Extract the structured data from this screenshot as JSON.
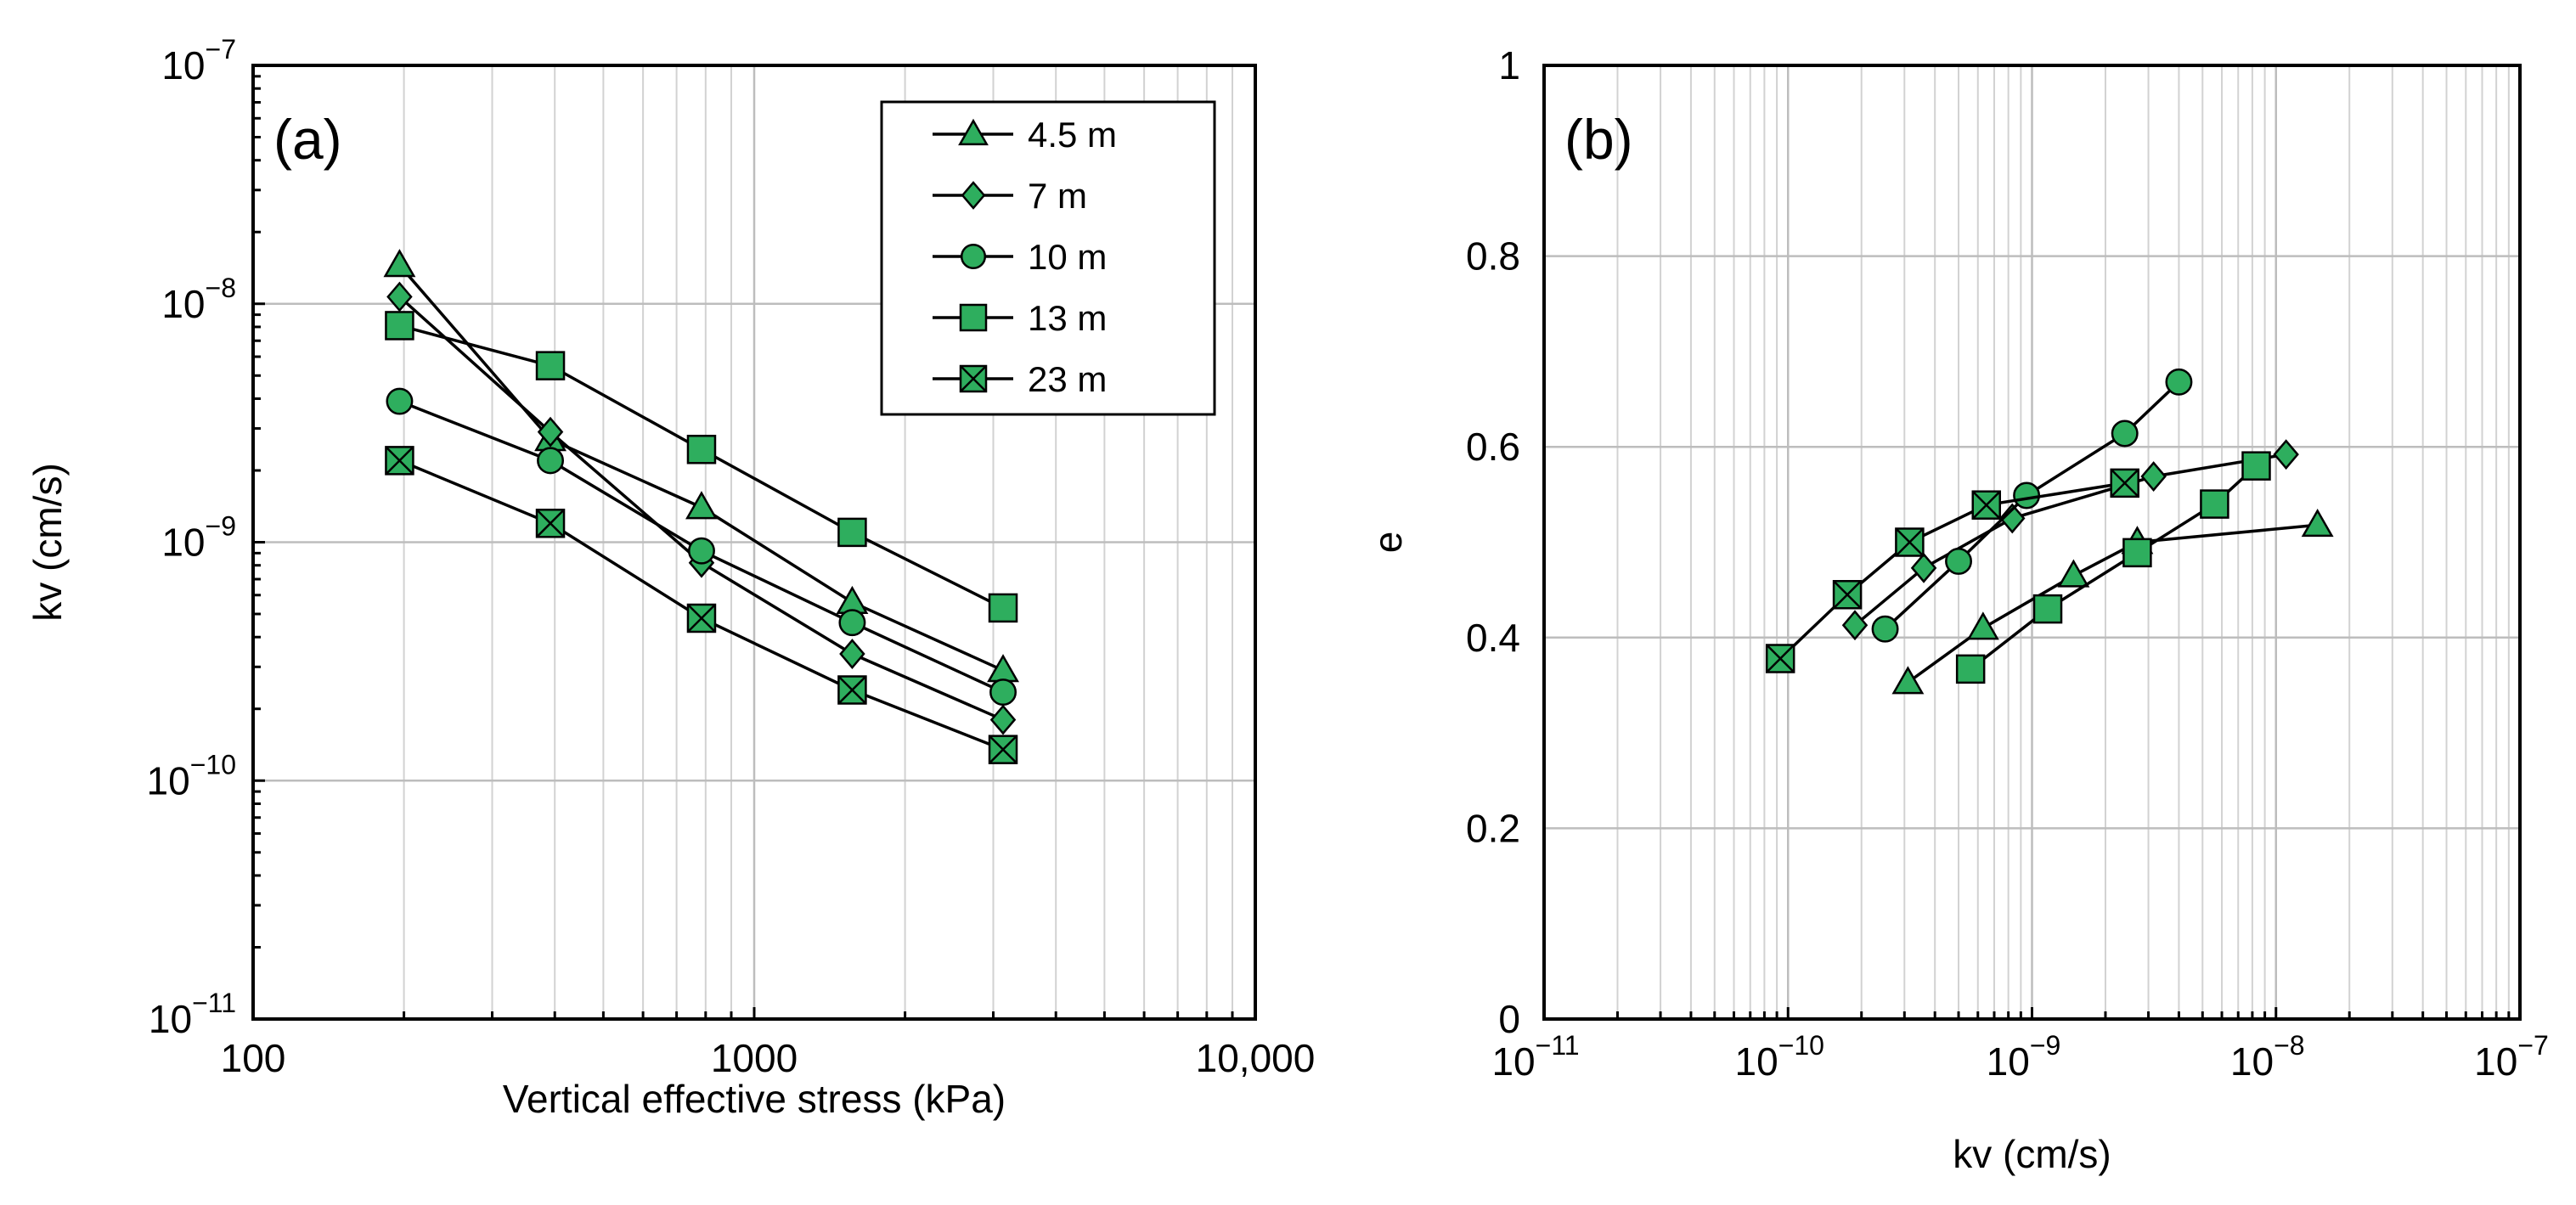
{
  "marker_fill": "#2eae5e",
  "marker_stroke": "#000000",
  "chart_data": [
    {
      "type": "line",
      "panel_label": "(a)",
      "xlabel": "Vertical effective stress (kPa)",
      "ylabel": "kv (cm/s)",
      "xscale": "log",
      "yscale": "log",
      "xlim": [
        100,
        10000
      ],
      "ylim": [
        1e-11,
        1e-07
      ],
      "grid": true,
      "legend_position": "top-right",
      "xticks": [
        {
          "value": 100,
          "label": "100"
        },
        {
          "value": 1000,
          "label": "1000"
        },
        {
          "value": 10000,
          "label": "10,000"
        }
      ],
      "yticks": [
        {
          "value": 1e-11,
          "base": "10",
          "exp": "−11"
        },
        {
          "value": 1e-10,
          "base": "10",
          "exp": "−10"
        },
        {
          "value": 1e-09,
          "base": "10",
          "exp": "−9"
        },
        {
          "value": 1e-08,
          "base": "10",
          "exp": "−8"
        },
        {
          "value": 1e-07,
          "base": "10",
          "exp": "−7"
        }
      ],
      "series": [
        {
          "name": "4.5 m",
          "marker": "triangle",
          "points": [
            [
              196,
              1.45e-08
            ],
            [
              392,
              2.7e-09
            ],
            [
              785,
              1.4e-09
            ],
            [
              1569,
              5.6e-10
            ],
            [
              3138,
              2.9e-10
            ]
          ]
        },
        {
          "name": "7 m",
          "marker": "diamond",
          "points": [
            [
              196,
              1.07e-08
            ],
            [
              392,
              2.9e-09
            ],
            [
              785,
              8.2e-10
            ],
            [
              1569,
              3.4e-10
            ],
            [
              3138,
              1.8e-10
            ]
          ]
        },
        {
          "name": "10 m",
          "marker": "circle",
          "points": [
            [
              196,
              3.9e-09
            ],
            [
              392,
              2.2e-09
            ],
            [
              785,
              9.2e-10
            ],
            [
              1569,
              4.6e-10
            ],
            [
              3138,
              2.35e-10
            ]
          ]
        },
        {
          "name": "13 m",
          "marker": "square",
          "points": [
            [
              196,
              8.1e-09
            ],
            [
              392,
              5.5e-09
            ],
            [
              785,
              2.45e-09
            ],
            [
              1569,
              1.1e-09
            ],
            [
              3138,
              5.3e-10
            ]
          ]
        },
        {
          "name": "23 m",
          "marker": "xsquare",
          "points": [
            [
              196,
              2.2e-09
            ],
            [
              392,
              1.2e-09
            ],
            [
              785,
              4.8e-10
            ],
            [
              1569,
              2.4e-10
            ],
            [
              3138,
              1.35e-10
            ]
          ]
        }
      ]
    },
    {
      "type": "line",
      "panel_label": "(b)",
      "xlabel": "kv (cm/s)",
      "ylabel": "e",
      "xscale": "log",
      "yscale": "linear",
      "xlim": [
        1e-11,
        1e-07
      ],
      "ylim": [
        0,
        1
      ],
      "grid": true,
      "xticks": [
        {
          "value": 1e-11,
          "base": "10",
          "exp": "−11"
        },
        {
          "value": 1e-10,
          "base": "10",
          "exp": "−10"
        },
        {
          "value": 1e-09,
          "base": "10",
          "exp": "−9"
        },
        {
          "value": 1e-08,
          "base": "10",
          "exp": "−8"
        },
        {
          "value": 1e-07,
          "base": "10",
          "exp": "−7"
        }
      ],
      "yticks": [
        {
          "value": 0,
          "label": "0"
        },
        {
          "value": 0.2,
          "label": "0.2"
        },
        {
          "value": 0.4,
          "label": "0.4"
        },
        {
          "value": 0.6,
          "label": "0.6"
        },
        {
          "value": 0.8,
          "label": "0.8"
        },
        {
          "value": 1,
          "label": "1"
        }
      ],
      "series": [
        {
          "name": "4.5 m",
          "marker": "triangle",
          "points": [
            [
              3.1e-10,
              0.353
            ],
            [
              6.3e-10,
              0.41
            ],
            [
              1.48e-09,
              0.465
            ],
            [
              2.7e-09,
              0.5
            ],
            [
              1.48e-08,
              0.518
            ]
          ]
        },
        {
          "name": "7 m",
          "marker": "diamond",
          "points": [
            [
              1.88e-10,
              0.413
            ],
            [
              3.6e-10,
              0.473
            ],
            [
              8.3e-10,
              0.525
            ],
            [
              3.15e-09,
              0.569
            ],
            [
              1.1e-08,
              0.592
            ]
          ]
        },
        {
          "name": "10 m",
          "marker": "circle",
          "points": [
            [
              2.5e-10,
              0.409
            ],
            [
              5e-10,
              0.48
            ],
            [
              9.5e-10,
              0.549
            ],
            [
              2.4e-09,
              0.614
            ],
            [
              4e-09,
              0.668
            ]
          ]
        },
        {
          "name": "13 m",
          "marker": "square",
          "points": [
            [
              5.6e-10,
              0.367
            ],
            [
              1.16e-09,
              0.43
            ],
            [
              2.7e-09,
              0.489
            ],
            [
              5.6e-09,
              0.54
            ],
            [
              8.3e-09,
              0.58
            ]
          ]
        },
        {
          "name": "23 m",
          "marker": "xsquare",
          "points": [
            [
              9.3e-11,
              0.378
            ],
            [
              1.75e-10,
              0.445
            ],
            [
              3.15e-10,
              0.5
            ],
            [
              6.5e-10,
              0.539
            ],
            [
              2.4e-09,
              0.562
            ]
          ]
        }
      ]
    }
  ]
}
